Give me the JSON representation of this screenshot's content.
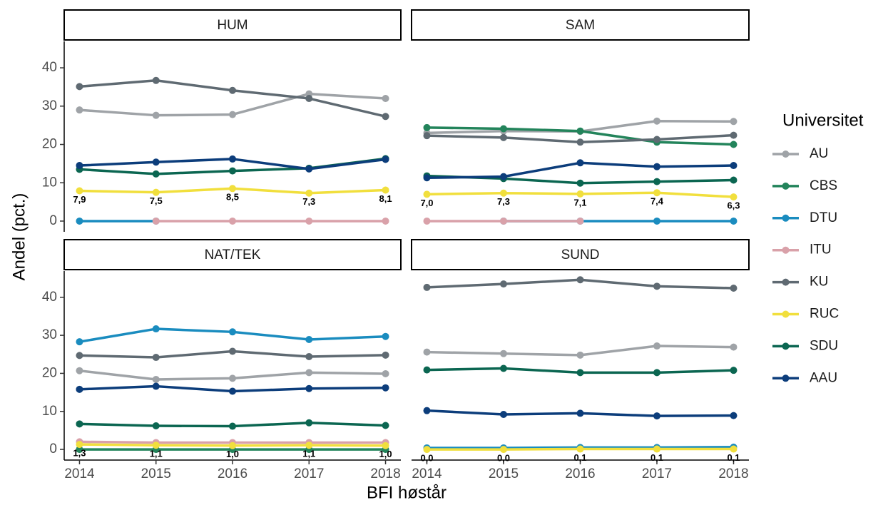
{
  "y_label": "Andel (pct.)",
  "x_label": "BFI høstår",
  "legend": {
    "title": "Universitet"
  },
  "chart_data": [
    {
      "type": "line",
      "title": "HUM",
      "x": [
        2014,
        2015,
        2016,
        2017,
        2018
      ],
      "xlim": [
        2013.8,
        2018.2
      ],
      "ylim": [
        -2.8,
        46.9
      ],
      "yticks": [
        0,
        10,
        20,
        30,
        40
      ],
      "series": [
        {
          "name": "AU",
          "color": "#9fa3a7",
          "values": [
            29,
            27.6,
            27.8,
            33.2,
            32
          ]
        },
        {
          "name": "CBS",
          "color": "#23845b",
          "values": [
            null,
            null,
            null,
            null,
            null
          ]
        },
        {
          "name": "DTU",
          "color": "#1a8cbf",
          "values": [
            0,
            0,
            null,
            null,
            null
          ]
        },
        {
          "name": "ITU",
          "color": "#d9a1a9",
          "values": [
            null,
            0,
            0,
            0,
            0
          ]
        },
        {
          "name": "KU",
          "color": "#5f6a72",
          "values": [
            35.1,
            36.7,
            34.1,
            32,
            27.3
          ]
        },
        {
          "name": "RUC",
          "color": "#f1df3d",
          "values": [
            7.9,
            7.5,
            8.5,
            7.3,
            8.1
          ],
          "value_labels": [
            "7,9",
            "7,5",
            "8,5",
            "7,3",
            "8,1"
          ]
        },
        {
          "name": "SDU",
          "color": "#0b6651",
          "values": [
            13.5,
            12.3,
            13.1,
            13.8,
            16.3
          ]
        },
        {
          "name": "AAU",
          "color": "#0c3d7b",
          "values": [
            14.5,
            15.4,
            16.2,
            13.6,
            16.1
          ]
        }
      ]
    },
    {
      "type": "line",
      "title": "SAM",
      "x": [
        2014,
        2015,
        2016,
        2017,
        2018
      ],
      "xlim": [
        2013.8,
        2018.2
      ],
      "ylim": [
        -2.8,
        46.9
      ],
      "series": [
        {
          "name": "AU",
          "color": "#9fa3a7",
          "values": [
            23,
            23.5,
            23.4,
            26.1,
            26
          ]
        },
        {
          "name": "CBS",
          "color": "#23845b",
          "values": [
            24.4,
            24.1,
            23.5,
            20.6,
            20
          ]
        },
        {
          "name": "DTU",
          "color": "#1a8cbf",
          "values": [
            null,
            0,
            0,
            0,
            0
          ]
        },
        {
          "name": "ITU",
          "color": "#d9a1a9",
          "values": [
            0,
            0,
            0,
            null,
            null
          ]
        },
        {
          "name": "KU",
          "color": "#5f6a72",
          "values": [
            22.3,
            21.8,
            20.6,
            21.3,
            22.4
          ]
        },
        {
          "name": "RUC",
          "color": "#f1df3d",
          "values": [
            7.0,
            7.3,
            7.1,
            7.4,
            6.3
          ],
          "value_labels": [
            "7,0",
            "7,3",
            "7,1",
            "7,4",
            "6,3"
          ]
        },
        {
          "name": "SDU",
          "color": "#0b6651",
          "values": [
            11.8,
            11.1,
            9.9,
            10.3,
            10.7
          ]
        },
        {
          "name": "AAU",
          "color": "#0c3d7b",
          "values": [
            11.3,
            11.6,
            15.2,
            14.2,
            14.5
          ]
        }
      ]
    },
    {
      "type": "line",
      "title": "NAT/TEK",
      "x": [
        2014,
        2015,
        2016,
        2017,
        2018
      ],
      "xlim": [
        2013.8,
        2018.2
      ],
      "ylim": [
        -2.8,
        46.9
      ],
      "xticks": [
        2014,
        2015,
        2016,
        2017,
        2018
      ],
      "yticks": [
        0,
        10,
        20,
        30,
        40
      ],
      "series": [
        {
          "name": "AU",
          "color": "#9fa3a7",
          "values": [
            20.7,
            18.4,
            18.7,
            20.2,
            19.9
          ]
        },
        {
          "name": "CBS",
          "color": "#23845b",
          "values": [
            0,
            0,
            0,
            0,
            0
          ]
        },
        {
          "name": "DTU",
          "color": "#1a8cbf",
          "values": [
            28.3,
            31.7,
            30.9,
            28.9,
            29.7
          ]
        },
        {
          "name": "ITU",
          "color": "#d9a1a9",
          "values": [
            2,
            1.8,
            1.8,
            1.8,
            1.8
          ]
        },
        {
          "name": "KU",
          "color": "#5f6a72",
          "values": [
            24.7,
            24.2,
            25.8,
            24.4,
            24.8
          ]
        },
        {
          "name": "RUC",
          "color": "#f1df3d",
          "values": [
            1.3,
            1.1,
            1.0,
            1.1,
            1.0
          ],
          "value_labels": [
            "1,3",
            "1,1",
            "1,0",
            "1,1",
            "1,0"
          ]
        },
        {
          "name": "SDU",
          "color": "#0b6651",
          "values": [
            6.7,
            6.2,
            6.1,
            7,
            6.3
          ]
        },
        {
          "name": "AAU",
          "color": "#0c3d7b",
          "values": [
            15.8,
            16.6,
            15.3,
            16,
            16.2
          ]
        }
      ]
    },
    {
      "type": "line",
      "title": "SUND",
      "x": [
        2014,
        2015,
        2016,
        2017,
        2018
      ],
      "xlim": [
        2013.8,
        2018.2
      ],
      "ylim": [
        -2.8,
        46.9
      ],
      "xticks": [
        2014,
        2015,
        2016,
        2017,
        2018
      ],
      "series": [
        {
          "name": "AU",
          "color": "#9fa3a7",
          "values": [
            25.6,
            25.2,
            24.8,
            27.2,
            26.9
          ]
        },
        {
          "name": "CBS",
          "color": "#23845b",
          "values": [
            null,
            null,
            null,
            null,
            null
          ]
        },
        {
          "name": "DTU",
          "color": "#1a8cbf",
          "values": [
            0.4,
            0.4,
            0.5,
            0.5,
            0.6
          ]
        },
        {
          "name": "ITU",
          "color": "#d9a1a9",
          "values": [
            null,
            null,
            null,
            null,
            null
          ]
        },
        {
          "name": "KU",
          "color": "#5f6a72",
          "values": [
            42.6,
            43.5,
            44.6,
            42.9,
            42.4
          ]
        },
        {
          "name": "RUC",
          "color": "#f1df3d",
          "values": [
            0.0,
            0.0,
            0.1,
            0.1,
            0.1
          ],
          "value_labels": [
            "0,0",
            "0,0",
            "0,1",
            "0,1",
            "0,1"
          ]
        },
        {
          "name": "SDU",
          "color": "#0b6651",
          "values": [
            20.9,
            21.3,
            20.2,
            20.2,
            20.8
          ]
        },
        {
          "name": "AAU",
          "color": "#0c3d7b",
          "values": [
            10.2,
            9.2,
            9.5,
            8.8,
            8.9
          ]
        }
      ]
    }
  ]
}
